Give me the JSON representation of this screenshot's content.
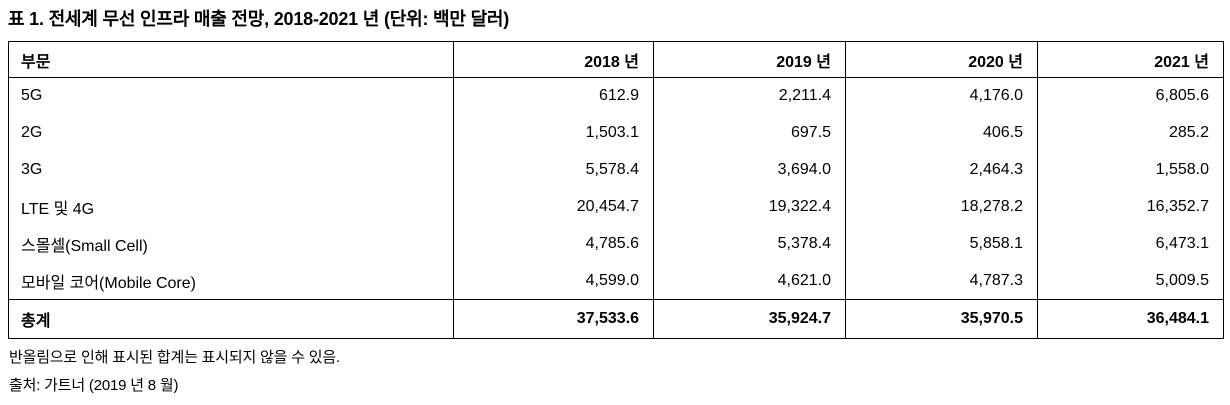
{
  "page": {
    "background_color": "#ffffff",
    "text_color": "#000000",
    "border_color": "#000000"
  },
  "title": "표 1. 전세계 무선 인프라 매출 전망, 2018-2021 년 (단위: 백만 달러)",
  "table": {
    "columns": [
      "부문",
      "2018 년",
      "2019 년",
      "2020 년",
      "2021 년"
    ],
    "rows": [
      {
        "label": "5G",
        "values": [
          "612.9",
          "2,211.4",
          "4,176.0",
          "6,805.6"
        ]
      },
      {
        "label": "2G",
        "values": [
          "1,503.1",
          "697.5",
          "406.5",
          "285.2"
        ]
      },
      {
        "label": "3G",
        "values": [
          "5,578.4",
          "3,694.0",
          "2,464.3",
          "1,558.0"
        ]
      },
      {
        "label": "LTE 및 4G",
        "values": [
          "20,454.7",
          "19,322.4",
          "18,278.2",
          "16,352.7"
        ]
      },
      {
        "label": "스몰셀(Small Cell)",
        "values": [
          "4,785.6",
          "5,378.4",
          "5,858.1",
          "6,473.1"
        ]
      },
      {
        "label": "모바일 코어(Mobile Core)",
        "values": [
          "4,599.0",
          "4,621.0",
          "4,787.3",
          "5,009.5"
        ]
      }
    ],
    "total": {
      "label": "총계",
      "values": [
        "37,533.6",
        "35,924.7",
        "35,970.5",
        "36,484.1"
      ]
    }
  },
  "footnotes": {
    "rounding_note": "반올림으로 인해 표시된 합계는 표시되지 않을 수 있음.",
    "source": "출처: 가트너 (2019 년 8 월)"
  },
  "chart_data": {
    "type": "table",
    "title": "표 1. 전세계 무선 인프라 매출 전망, 2018-2021 년 (단위: 백만 달러)",
    "unit": "백만 달러",
    "categories": [
      "2018 년",
      "2019 년",
      "2020 년",
      "2021 년"
    ],
    "series": [
      {
        "name": "5G",
        "values": [
          612.9,
          2211.4,
          4176.0,
          6805.6
        ]
      },
      {
        "name": "2G",
        "values": [
          1503.1,
          697.5,
          406.5,
          285.2
        ]
      },
      {
        "name": "3G",
        "values": [
          5578.4,
          3694.0,
          2464.3,
          1558.0
        ]
      },
      {
        "name": "LTE 및 4G",
        "values": [
          20454.7,
          19322.4,
          18278.2,
          16352.7
        ]
      },
      {
        "name": "스몰셀(Small Cell)",
        "values": [
          4785.6,
          5378.4,
          5858.1,
          6473.1
        ]
      },
      {
        "name": "모바일 코어(Mobile Core)",
        "values": [
          4599.0,
          4621.0,
          4787.3,
          5009.5
        ]
      },
      {
        "name": "총계",
        "values": [
          37533.6,
          35924.7,
          35970.5,
          36484.1
        ]
      }
    ],
    "source": "출처: 가트너 (2019 년 8 월)"
  }
}
